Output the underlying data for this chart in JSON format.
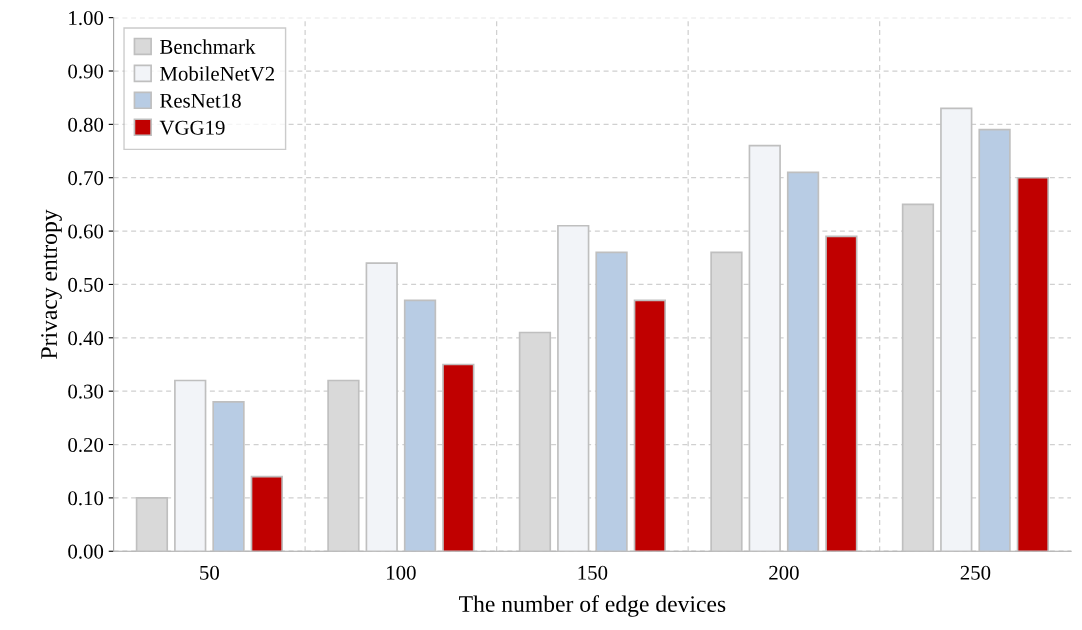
{
  "chart_data": {
    "type": "bar",
    "xlabel": "The number of edge devices",
    "ylabel": "Privacy entropy",
    "categories": [
      "50",
      "100",
      "150",
      "200",
      "250"
    ],
    "series": [
      {
        "name": "Benchmark",
        "color": "#d9d9d9",
        "values": [
          0.1,
          0.32,
          0.41,
          0.56,
          0.65
        ]
      },
      {
        "name": "MobileNetV2",
        "color": "#f2f4f8",
        "values": [
          0.32,
          0.54,
          0.61,
          0.76,
          0.83
        ]
      },
      {
        "name": "ResNet18",
        "color": "#b8cce4",
        "values": [
          0.28,
          0.47,
          0.56,
          0.71,
          0.79
        ]
      },
      {
        "name": "VGG19",
        "color": "#c00000",
        "values": [
          0.14,
          0.35,
          0.47,
          0.59,
          0.7
        ]
      }
    ],
    "ylim": [
      0,
      1
    ],
    "yticks": [
      {
        "value": 0,
        "label": "0.00"
      },
      {
        "value": 0.1,
        "label": "0.10"
      },
      {
        "value": 0.2,
        "label": "0.20"
      },
      {
        "value": 0.3,
        "label": "0.30"
      },
      {
        "value": 0.4,
        "label": "0.40"
      },
      {
        "value": 0.5,
        "label": "0.50"
      },
      {
        "value": 0.6,
        "label": "0.60"
      },
      {
        "value": 0.7,
        "label": "0.70"
      },
      {
        "value": 0.8,
        "label": "0.80"
      },
      {
        "value": 0.9,
        "label": "0.90"
      },
      {
        "value": 1,
        "label": "1.00"
      }
    ],
    "grid": true,
    "legend": "top left"
  }
}
